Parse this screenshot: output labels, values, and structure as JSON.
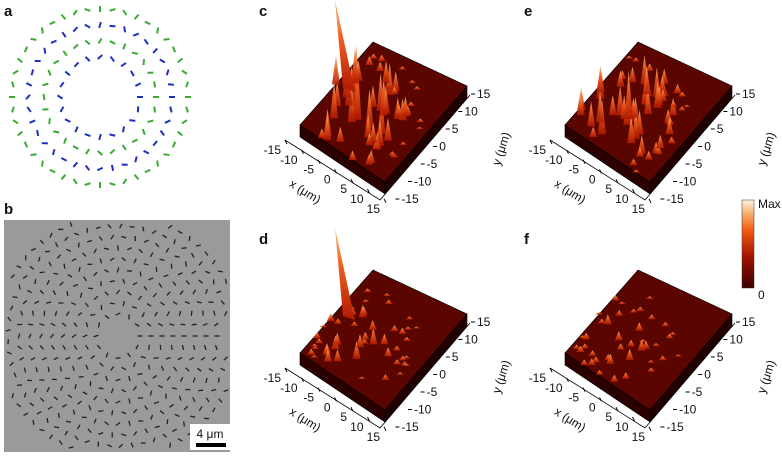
{
  "panels": [
    {
      "label": "a"
    },
    {
      "label": "b",
      "scale_bar": "4 μm"
    },
    {
      "label": "c"
    },
    {
      "label": "d"
    },
    {
      "label": "e"
    },
    {
      "label": "f"
    }
  ],
  "surface_axes": {
    "x_label": "x (μm)",
    "y_label": "y (μm)",
    "x_ticks": [
      -15,
      -10,
      -5,
      0,
      5,
      10,
      15
    ],
    "y_ticks": [
      15,
      10,
      5,
      0,
      -5,
      -10,
      -15
    ]
  },
  "colorbar": {
    "max_label": "Max",
    "min_label": "0"
  }
}
